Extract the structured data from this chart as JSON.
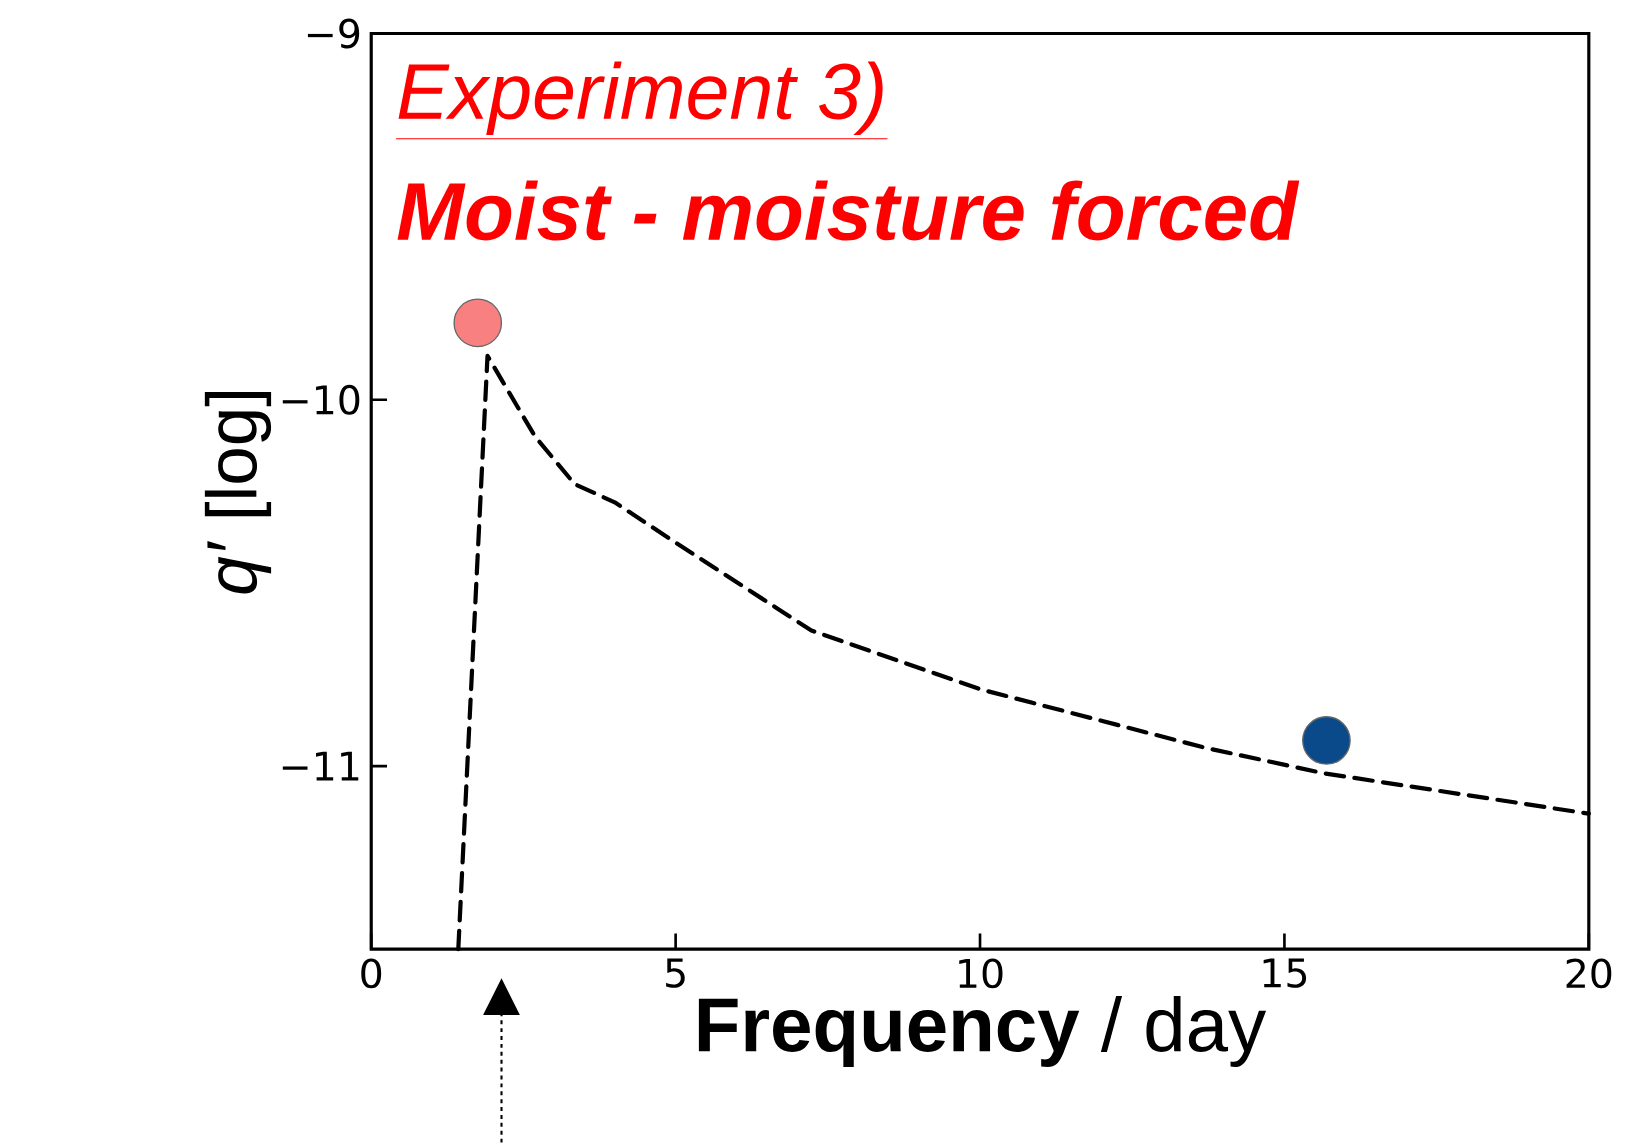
{
  "chart_data": {
    "type": "line",
    "title": "Experiment 3)",
    "subtitle": "Moist - moisture forced",
    "xlabel": "**Frequency** / day",
    "ylabel": "*q′* [log]",
    "xlim": [
      0,
      20
    ],
    "ylim": [
      -11.5,
      -9
    ],
    "xticks": [
      0,
      5,
      10,
      15,
      20
    ],
    "yticks": [
      {
        "value": -11,
        "label": "−11"
      },
      {
        "value": -10,
        "label": "−10"
      },
      {
        "value": -9,
        "label": "−9"
      }
    ],
    "series": [
      {
        "type": "line",
        "color": "#000000",
        "line_style": "dashed",
        "marker": "none",
        "x": [
          1.43,
          1.91,
          2.69,
          3.34,
          4.0,
          5.0,
          7.23,
          10.0,
          13.7,
          15.66,
          20.0
        ],
        "values": [
          -11.5,
          -9.88,
          -10.1,
          -10.23,
          -10.28,
          -10.39,
          -10.63,
          -10.79,
          -10.95,
          -11.02,
          -11.13
        ]
      },
      {
        "type": "scatter",
        "marker": "circle",
        "x": [
          1.75,
          15.69
        ],
        "values": [
          -9.79,
          -10.93
        ],
        "colors": [
          "#f88080",
          "#0b4a8a"
        ]
      }
    ],
    "grid": false
  }
}
